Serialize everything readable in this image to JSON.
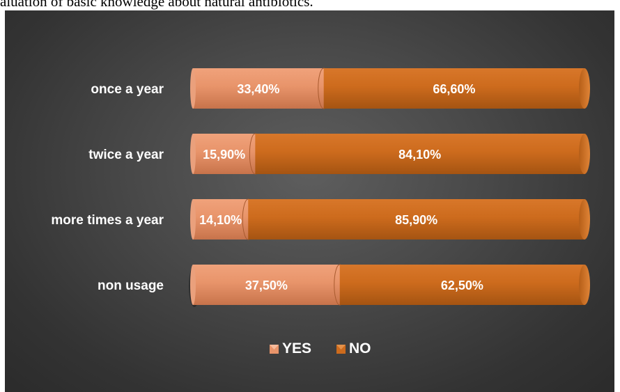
{
  "caption": "aluation of basic knowledge about natural antibiotics.",
  "colors": {
    "yes": "#e8946a",
    "no": "#cd6b1d"
  },
  "chart_data": {
    "type": "bar",
    "orientation": "horizontal",
    "stacked": "percent",
    "categories": [
      "once a year",
      "twice a year",
      "more times a year",
      "non usage"
    ],
    "series": [
      {
        "name": "YES",
        "values": [
          33.4,
          15.9,
          14.1,
          37.5
        ],
        "labels": [
          "33,40%",
          "15,90%",
          "14,10%",
          "37,50%"
        ]
      },
      {
        "name": "NO",
        "values": [
          66.6,
          84.1,
          85.9,
          62.5
        ],
        "labels": [
          "66,60%",
          "84,10%",
          "85,90%",
          "62,50%"
        ]
      }
    ],
    "xlim": [
      0,
      100
    ],
    "legend_position": "bottom",
    "grid": false
  }
}
